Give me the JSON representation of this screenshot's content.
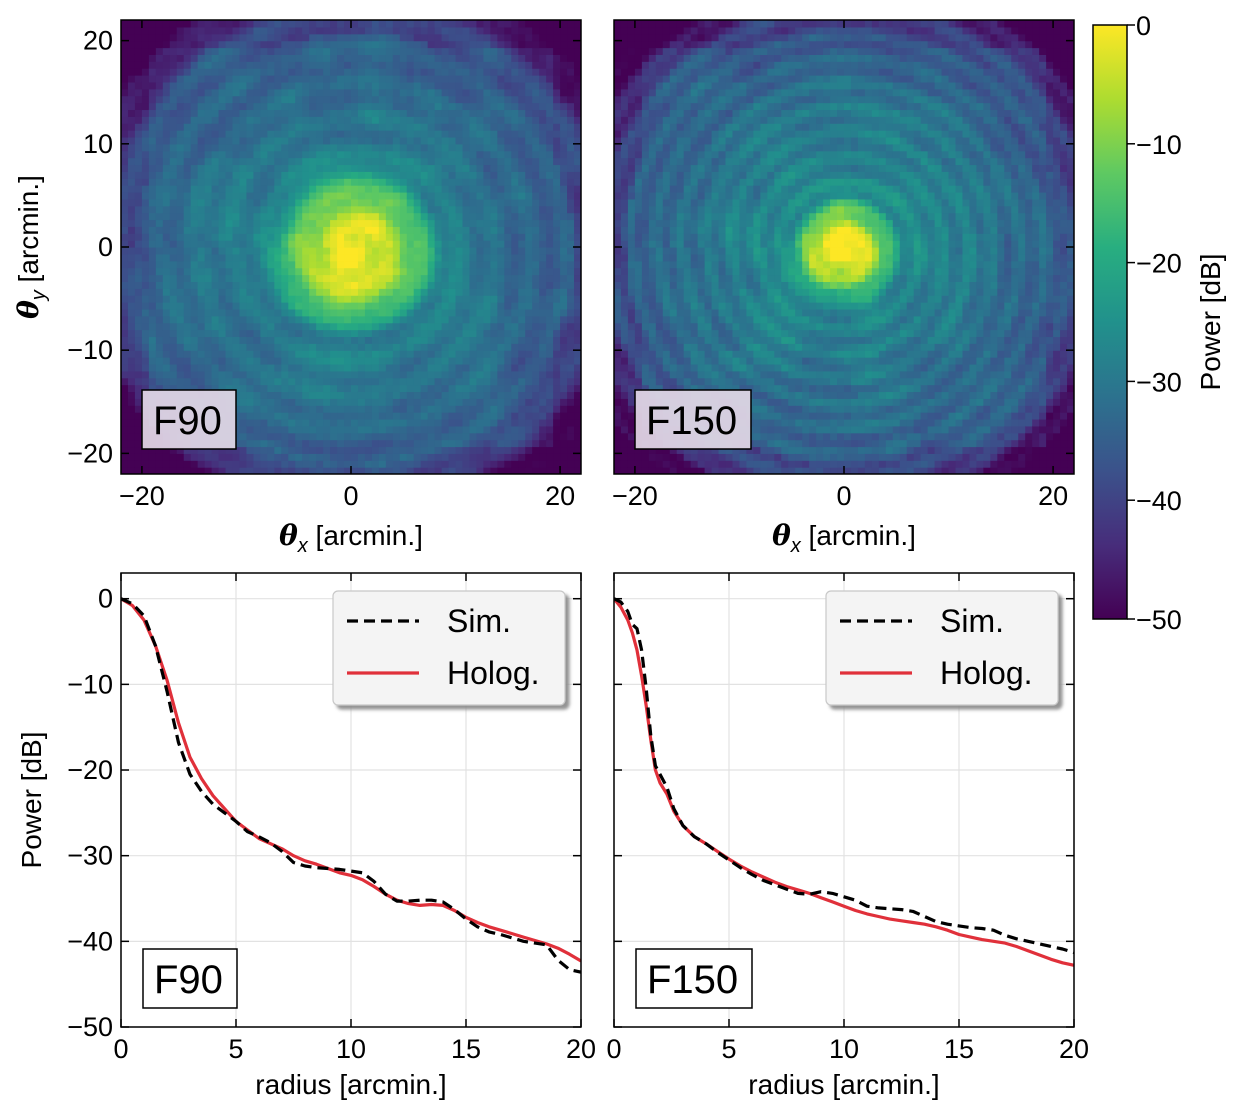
{
  "chart_data": [
    {
      "type": "heatmap",
      "panel_label": "F90",
      "x_label_symbol": "θ",
      "x_label_sub": "x",
      "x_label_unit": "[arcmin.]",
      "y_label_symbol": "θ",
      "y_label_sub": "y",
      "y_label_unit": "[arcmin.]",
      "xlim": [
        -22,
        22
      ],
      "ylim": [
        -22,
        22
      ],
      "x_ticks": [
        -20,
        0,
        20
      ],
      "y_ticks": [
        -20,
        -10,
        0,
        10,
        20
      ],
      "x_tick_labels": [
        "−20",
        "0",
        "20"
      ],
      "y_tick_labels": [
        "−20",
        "−10",
        "0",
        "10",
        "20"
      ],
      "peak_center": [
        0.3,
        -0.2
      ],
      "peak_db": 0,
      "floor_db": -50,
      "colormap": "viridis"
    },
    {
      "type": "heatmap",
      "panel_label": "F150",
      "x_label_symbol": "θ",
      "x_label_sub": "x",
      "x_label_unit": "[arcmin.]",
      "xlim": [
        -22,
        22
      ],
      "ylim": [
        -22,
        22
      ],
      "x_ticks": [
        -20,
        0,
        20
      ],
      "x_tick_labels": [
        "−20",
        "0",
        "20"
      ],
      "peak_center": [
        0.0,
        -0.3
      ],
      "peak_db": 0,
      "floor_db": -50,
      "colormap": "viridis"
    },
    {
      "type": "line",
      "panel_label": "F90",
      "xlabel": "radius [arcmin.]",
      "ylabel": "Power [dB]",
      "xlim": [
        0,
        20
      ],
      "ylim": [
        -50,
        3
      ],
      "x_ticks": [
        0,
        5,
        10,
        15,
        20
      ],
      "y_ticks": [
        -50,
        -40,
        -30,
        -20,
        -10,
        0
      ],
      "x_tick_labels": [
        "0",
        "5",
        "10",
        "15",
        "20"
      ],
      "y_tick_labels": [
        "−50",
        "−40",
        "−30",
        "−20",
        "−10",
        "0"
      ],
      "grid": true,
      "legend_position": "top-right",
      "series": [
        {
          "name": "Sim.",
          "style": "dashed",
          "color": "#000000",
          "x": [
            0,
            0.5,
            1.0,
            1.5,
            2.0,
            2.5,
            3.0,
            3.5,
            4.0,
            4.5,
            5.0,
            5.5,
            6.0,
            6.5,
            7.0,
            7.5,
            8.0,
            8.5,
            9.0,
            9.5,
            10.0,
            10.5,
            11.0,
            11.5,
            12.0,
            12.5,
            13.0,
            13.5,
            14.0,
            14.5,
            15.0,
            15.5,
            16.0,
            16.5,
            17.0,
            17.5,
            18.0,
            18.5,
            19.0,
            19.5,
            20.0
          ],
          "y": [
            0,
            -0.6,
            -2.0,
            -5.5,
            -10.8,
            -16.8,
            -20.5,
            -22.5,
            -24.0,
            -25.0,
            -26.0,
            -27.2,
            -27.8,
            -28.5,
            -29.5,
            -30.8,
            -31.2,
            -31.4,
            -31.5,
            -31.6,
            -31.8,
            -32.0,
            -33.0,
            -34.5,
            -35.3,
            -35.3,
            -35.2,
            -35.2,
            -35.4,
            -36.3,
            -37.4,
            -38.3,
            -38.9,
            -39.2,
            -39.6,
            -40.0,
            -40.2,
            -40.4,
            -42.2,
            -43.3,
            -43.6
          ]
        },
        {
          "name": "Holog.",
          "style": "solid",
          "color": "#e0303a",
          "x": [
            0,
            0.5,
            1.0,
            1.5,
            2.0,
            2.5,
            3.0,
            3.5,
            4.0,
            4.5,
            5.0,
            5.5,
            6.0,
            6.5,
            7.0,
            7.5,
            8.0,
            8.5,
            9.0,
            9.5,
            10.0,
            10.5,
            11.0,
            11.5,
            12.0,
            12.5,
            13.0,
            13.5,
            14.0,
            14.5,
            15.0,
            15.5,
            16.0,
            16.5,
            17.0,
            17.5,
            18.0,
            18.5,
            19.0,
            19.5,
            20.0
          ],
          "y": [
            0,
            -0.8,
            -2.5,
            -5.5,
            -9.5,
            -14.5,
            -18.5,
            -21.0,
            -23.0,
            -24.5,
            -26.0,
            -27.0,
            -28.0,
            -28.6,
            -29.2,
            -30.0,
            -30.6,
            -31.0,
            -31.5,
            -32.0,
            -32.3,
            -32.8,
            -33.6,
            -34.5,
            -35.2,
            -35.6,
            -35.8,
            -35.7,
            -35.8,
            -36.4,
            -37.2,
            -37.8,
            -38.3,
            -38.7,
            -39.1,
            -39.5,
            -39.9,
            -40.3,
            -40.8,
            -41.5,
            -42.3
          ]
        }
      ]
    },
    {
      "type": "line",
      "panel_label": "F150",
      "xlabel": "radius [arcmin.]",
      "xlim": [
        0,
        20
      ],
      "ylim": [
        -50,
        3
      ],
      "x_ticks": [
        0,
        5,
        10,
        15,
        20
      ],
      "y_ticks": [
        -50,
        -40,
        -30,
        -20,
        -10,
        0
      ],
      "x_tick_labels": [
        "0",
        "5",
        "10",
        "15",
        "20"
      ],
      "grid": true,
      "legend_position": "top-right",
      "series": [
        {
          "name": "Sim.",
          "style": "dashed",
          "color": "#000000",
          "x": [
            0,
            0.3,
            0.6,
            0.8,
            1.0,
            1.2,
            1.4,
            1.6,
            1.8,
            2.0,
            2.3,
            2.6,
            3.0,
            3.5,
            4.0,
            4.5,
            5.0,
            5.5,
            6.0,
            6.5,
            7.0,
            7.5,
            8.0,
            8.5,
            9.0,
            9.5,
            10.0,
            10.5,
            11.0,
            11.5,
            12.0,
            12.5,
            13.0,
            13.5,
            14.0,
            14.5,
            15.0,
            15.5,
            16.0,
            16.5,
            17.0,
            17.5,
            18.0,
            18.5,
            19.0,
            19.5,
            20.0
          ],
          "y": [
            0,
            -0.4,
            -1.5,
            -3.0,
            -3.5,
            -6.0,
            -10.5,
            -16.0,
            -19.5,
            -20.5,
            -22.0,
            -24.5,
            -26.5,
            -27.8,
            -28.6,
            -29.6,
            -30.5,
            -31.4,
            -32.2,
            -32.9,
            -33.4,
            -33.9,
            -34.4,
            -34.5,
            -34.2,
            -34.4,
            -34.8,
            -35.2,
            -35.9,
            -36.1,
            -36.2,
            -36.3,
            -36.5,
            -37.1,
            -37.7,
            -38.0,
            -38.2,
            -38.4,
            -38.5,
            -38.7,
            -39.3,
            -39.7,
            -40.0,
            -40.3,
            -40.6,
            -40.9,
            -41.3
          ]
        },
        {
          "name": "Holog.",
          "style": "solid",
          "color": "#e0303a",
          "x": [
            0,
            0.3,
            0.6,
            0.8,
            1.0,
            1.2,
            1.4,
            1.6,
            1.8,
            2.0,
            2.3,
            2.6,
            3.0,
            3.5,
            4.0,
            4.5,
            5.0,
            5.5,
            6.0,
            6.5,
            7.0,
            7.5,
            8.0,
            8.5,
            9.0,
            9.5,
            10.0,
            10.5,
            11.0,
            11.5,
            12.0,
            12.5,
            13.0,
            13.5,
            14.0,
            14.5,
            15.0,
            15.5,
            16.0,
            16.5,
            17.0,
            17.5,
            18.0,
            18.5,
            19.0,
            19.5,
            20.0
          ],
          "y": [
            0,
            -1.0,
            -2.5,
            -4.0,
            -6.0,
            -9.0,
            -12.5,
            -16.5,
            -20.0,
            -21.5,
            -22.8,
            -24.8,
            -26.5,
            -27.8,
            -28.6,
            -29.5,
            -30.4,
            -31.2,
            -31.9,
            -32.5,
            -33.1,
            -33.6,
            -34.0,
            -34.4,
            -34.9,
            -35.4,
            -35.9,
            -36.4,
            -36.8,
            -37.1,
            -37.4,
            -37.6,
            -37.8,
            -38.0,
            -38.3,
            -38.7,
            -39.2,
            -39.5,
            -39.8,
            -40.0,
            -40.2,
            -40.6,
            -41.1,
            -41.6,
            -42.1,
            -42.5,
            -42.8
          ]
        }
      ]
    }
  ],
  "colorbar": {
    "label": "Power [dB]",
    "range": [
      -50,
      0
    ],
    "ticks": [
      0,
      -10,
      -20,
      -30,
      -40,
      -50
    ],
    "tick_labels": [
      "0",
      "−10",
      "−20",
      "−30",
      "−40",
      "−50"
    ],
    "colormap": "viridis"
  }
}
